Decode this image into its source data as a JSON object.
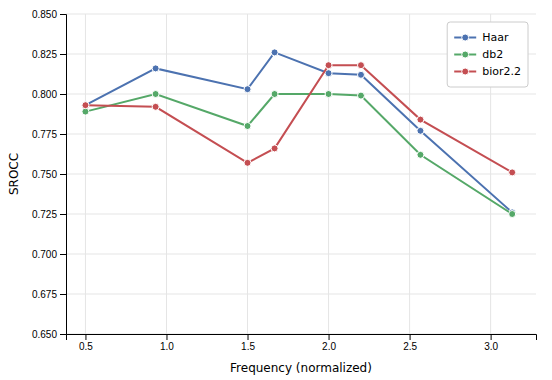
{
  "chart_data": {
    "type": "line",
    "x": [
      0.5,
      0.933,
      1.5,
      1.667,
      2.0,
      2.2,
      2.567,
      3.133
    ],
    "xlabel": "Frequency (normalized)",
    "ylabel": "SROCC",
    "series": [
      {
        "name": "Haar",
        "color": "#4c72b0",
        "values": [
          0.793,
          0.816,
          0.803,
          0.826,
          0.813,
          0.812,
          0.777,
          0.726
        ]
      },
      {
        "name": "db2",
        "color": "#55a868",
        "values": [
          0.789,
          0.8,
          0.78,
          0.8,
          0.8,
          0.799,
          0.762,
          0.725
        ]
      },
      {
        "name": "bior2.2",
        "color": "#c44e52",
        "values": [
          0.793,
          0.792,
          0.757,
          0.766,
          0.818,
          0.818,
          0.784,
          0.751
        ]
      }
    ],
    "xlim": [
      0.38,
      3.28
    ],
    "ylim": [
      0.65,
      0.85
    ],
    "xticks": [
      0.5,
      {
        "value": 1.0,
        "label": "1.0"
      },
      1.5,
      {
        "value": 2.0,
        "label": "2.0"
      },
      2.5,
      {
        "value": 3.0,
        "label": "3.0"
      }
    ],
    "yticks": [
      {
        "value": 0.65,
        "label": "0.650"
      },
      0.675,
      {
        "value": 0.7,
        "label": "0.700"
      },
      0.725,
      {
        "value": 0.75,
        "label": "0.750"
      },
      0.775,
      {
        "value": 0.8,
        "label": "0.800"
      },
      0.825,
      {
        "value": 0.85,
        "label": "0.850"
      }
    ],
    "grid": true,
    "legend": "top-right",
    "marker": "circle",
    "line_style": "solid"
  }
}
